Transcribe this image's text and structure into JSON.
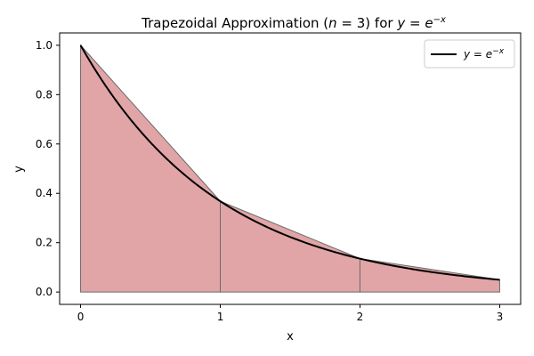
{
  "chart_data": {
    "type": "area",
    "title_text": "Trapezoidal Approximation (",
    "title_math_n": "n",
    "title_math_eq": " = 3) for ",
    "title_math_y": "y",
    "title_math_eq2": " = ",
    "title_math_e": "e",
    "title_math_exp": "−x",
    "xlabel": "x",
    "ylabel": "y",
    "xlim": [
      -0.15,
      3.15
    ],
    "ylim": [
      -0.05,
      1.05
    ],
    "xticks": [
      0,
      1,
      2,
      3
    ],
    "xtick_labels": [
      "0",
      "1",
      "2",
      "3"
    ],
    "yticks": [
      0.0,
      0.2,
      0.4,
      0.6,
      0.8,
      1.0
    ],
    "ytick_labels": [
      "0.0",
      "0.2",
      "0.4",
      "0.6",
      "0.8",
      "1.0"
    ],
    "function": "exp(-x)",
    "curve_domain": [
      0,
      3
    ],
    "trapezoid_nodes": [
      {
        "x": 0,
        "y": 1.0
      },
      {
        "x": 1,
        "y": 0.3679
      },
      {
        "x": 2,
        "y": 0.1353
      },
      {
        "x": 3,
        "y": 0.0498
      }
    ],
    "series": [
      {
        "name_y": "y",
        "name_eq": " = ",
        "name_e": "e",
        "name_exp": "−x",
        "color": "#000000"
      }
    ],
    "trapezoid_fill": "#e1a5a7",
    "trapezoid_edge": "#6b6b6b",
    "legend_placement": "top-right",
    "grid": false
  }
}
